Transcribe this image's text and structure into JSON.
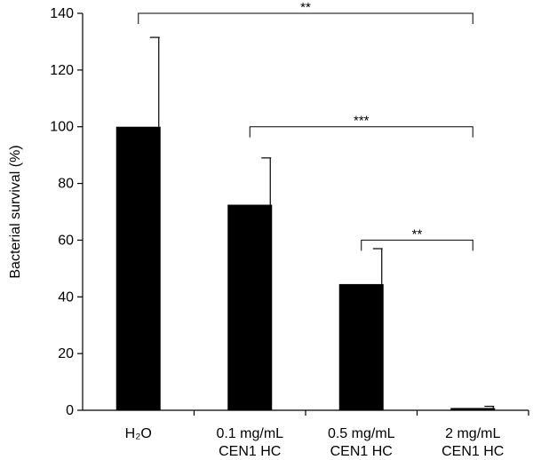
{
  "chart_data": {
    "type": "bar",
    "ylabel": "Bacterial survival (%)",
    "ylim": [
      0,
      140
    ],
    "yticks": [
      0,
      20,
      40,
      60,
      80,
      100,
      120,
      140
    ],
    "categories": [
      {
        "lines": [
          "H₂O"
        ]
      },
      {
        "lines": [
          "0.1 mg/mL",
          "CEN1 HC"
        ]
      },
      {
        "lines": [
          "0.5 mg/mL",
          "CEN1 HC"
        ]
      },
      {
        "lines": [
          "2 mg/mL",
          "CEN1 HC"
        ]
      }
    ],
    "values": [
      100,
      72.5,
      44.5,
      0.8
    ],
    "errors": [
      31.5,
      16.5,
      12.5,
      0.6
    ],
    "significance": [
      {
        "from": 0,
        "to": 3,
        "label": "**",
        "y": 140
      },
      {
        "from": 1,
        "to": 3,
        "label": "***",
        "y": 100
      },
      {
        "from": 2,
        "to": 3,
        "label": "**",
        "y": 60
      }
    ],
    "colors": {
      "bar": "#000000",
      "axis": "#000000"
    },
    "grid": false
  }
}
